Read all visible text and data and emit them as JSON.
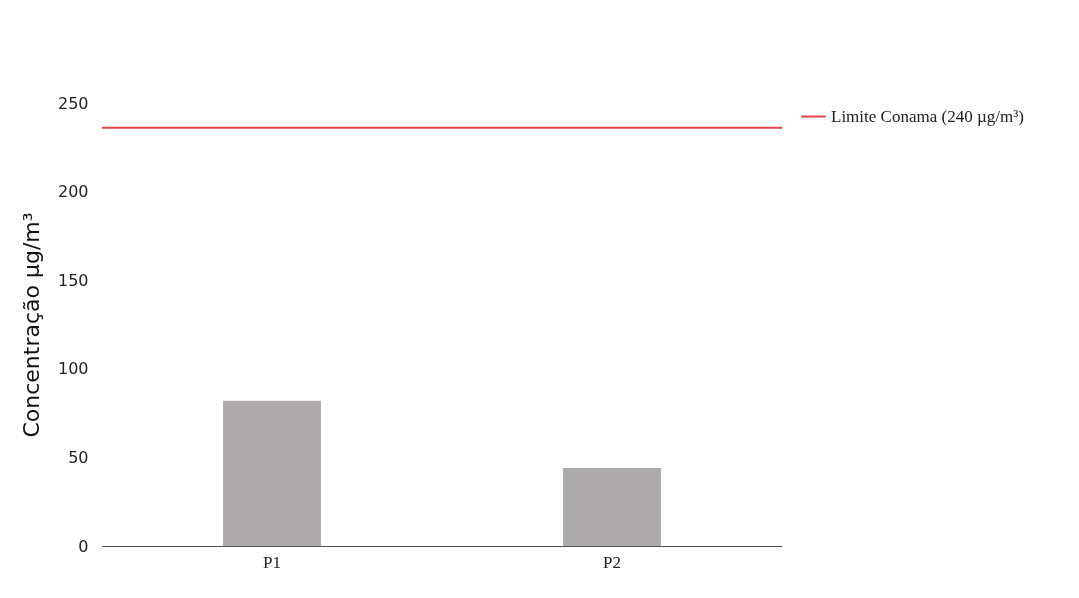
{
  "chart_data": {
    "type": "bar",
    "ylabel": "Concentração µg/m³",
    "categories": [
      "P1",
      "P2"
    ],
    "values": [
      82,
      44
    ],
    "color": "#aeaaaa",
    "ylim": [
      0,
      250
    ],
    "yticks": [
      0,
      50,
      100,
      150,
      200,
      250
    ],
    "grid": false,
    "legend": "right",
    "ref_lines": [
      {
        "axis": "y",
        "value": 236,
        "label": "Limite Conama (240 µg/m³)",
        "color": "#e04444"
      }
    ]
  }
}
